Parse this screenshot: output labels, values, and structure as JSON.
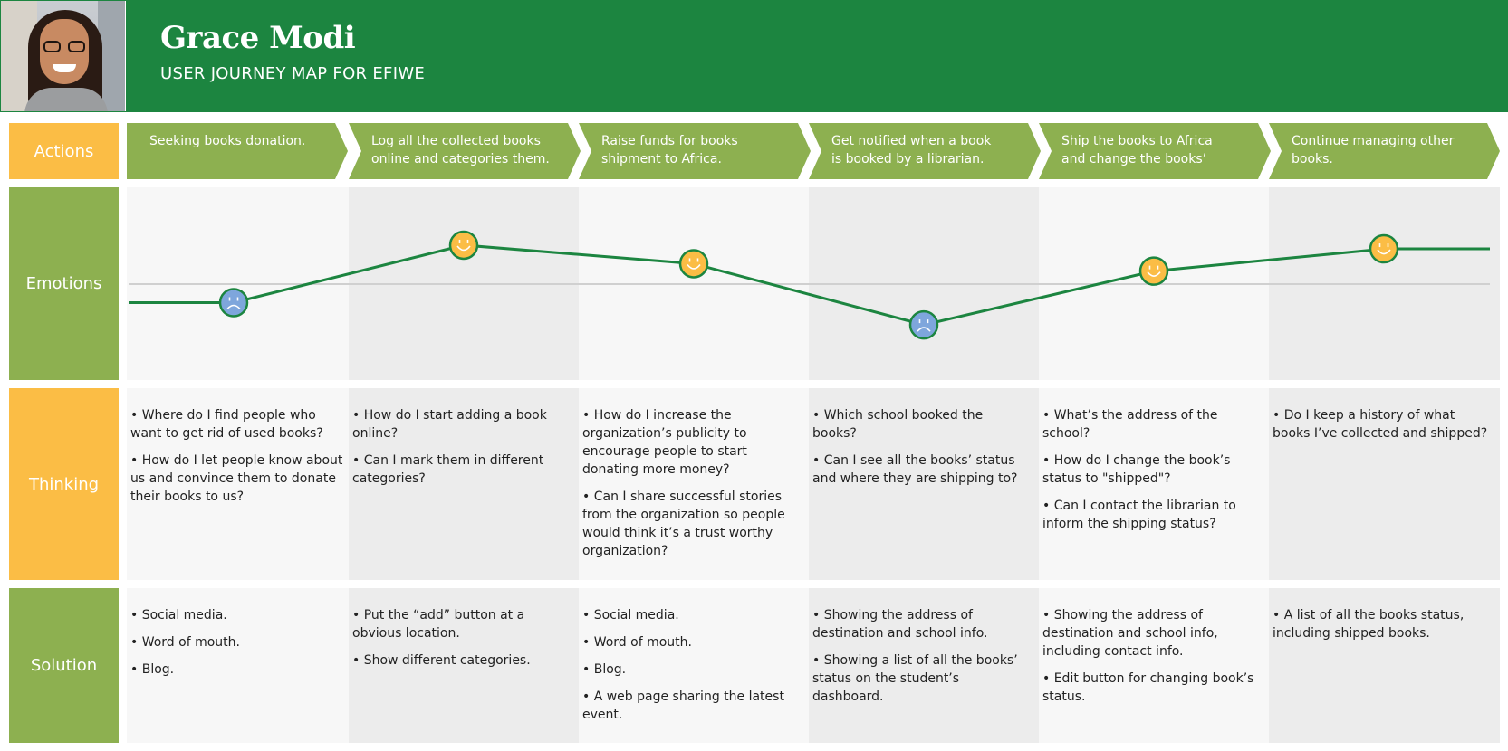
{
  "header": {
    "name": "Grace Modi",
    "subtitle": "USER JOURNEY MAP FOR EFIWE"
  },
  "row_labels": {
    "actions": "Actions",
    "emotions": "Emotions",
    "thinking": "Thinking",
    "solution": "Solution"
  },
  "actions": [
    {
      "line1": "Seeking books donation.",
      "line2": ""
    },
    {
      "line1": "Log all the collected books",
      "line2": "online and categories them."
    },
    {
      "line1": "Raise funds for books",
      "line2": "shipment to Africa."
    },
    {
      "line1": "Get notified when a book",
      "line2": "is booked by a librarian."
    },
    {
      "line1": "Ship the books to Africa",
      "line2": "and change the books’"
    },
    {
      "line1": "Continue managing other",
      "line2": "books."
    }
  ],
  "emotions": [
    {
      "mood": "sad",
      "level": -0.5
    },
    {
      "mood": "happy",
      "level": 1.05
    },
    {
      "mood": "happy",
      "level": 0.55
    },
    {
      "mood": "sad",
      "level": -1.1
    },
    {
      "mood": "happy",
      "level": 0.35
    },
    {
      "mood": "happy",
      "level": 0.95
    }
  ],
  "emotion_colors": {
    "line": "#1c8540",
    "happy": "#fbbd45",
    "sad": "#7ea6dc",
    "baseline": "#d0d0d0"
  },
  "thinking": [
    [
      "• Where do I find people who want to get rid of used books?",
      "• How do I let people know about us and convince them to donate their books to us?"
    ],
    [
      "• How do I start adding a book online?",
      "• Can I mark them in different categories?"
    ],
    [
      "• How do I increase the organization’s publicity to encourage people to start donating more money?",
      "• Can I share successful stories from the organization so people would think it’s a trust worthy organization?"
    ],
    [
      "• Which school booked the books?",
      "• Can I see all the books’ status and where they are shipping to?"
    ],
    [
      "• What’s the address of the school?",
      "• How do I change the book’s status to \"shipped\"?",
      "• Can I contact the librarian to inform the shipping status?"
    ],
    [
      "• Do I keep a history of what books I’ve collected and shipped?"
    ]
  ],
  "solution": [
    [
      "• Social media.",
      "• Word of mouth.",
      "• Blog."
    ],
    [
      "• Put the “add” button at a obvious location.",
      "• Show different categories."
    ],
    [
      "• Social media.",
      "• Word of mouth.",
      "• Blog.",
      "• A web page sharing the latest event."
    ],
    [
      "• Showing the address of destination and school info.",
      "• Showing a list of all the books’ status on the student’s dashboard."
    ],
    [
      "• Showing the address of destination and school info, including contact info.",
      "• Edit button for changing book’s status."
    ],
    [
      "• A list of all the books status, including shipped books."
    ]
  ],
  "colors": {
    "header_green": "#1c8540",
    "label_yellow": "#fbbd45",
    "label_green": "#8db050",
    "chevron_green": "#8db050"
  }
}
